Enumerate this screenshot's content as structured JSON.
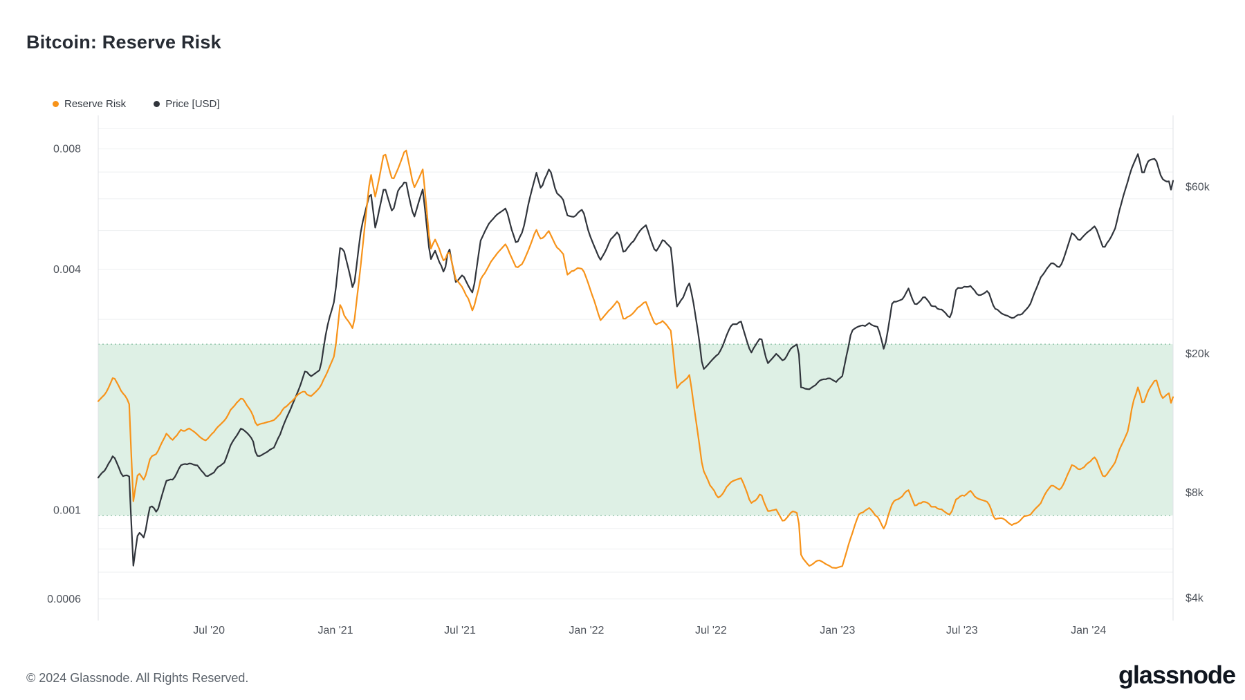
{
  "header": {
    "title": "Bitcoin: Reserve Risk"
  },
  "footer": {
    "copyright": "© 2024 Glassnode. All Rights Reserved.",
    "brand": "glassnode"
  },
  "chart_data": {
    "type": "line",
    "title": "Bitcoin: Reserve Risk",
    "legend_position": "top-left",
    "grid": true,
    "x_axis": {
      "min": "2020-01-22",
      "max": "2024-05-03",
      "ticks": [
        {
          "date": "2020-07-01",
          "label": "Jul '20"
        },
        {
          "date": "2021-01-01",
          "label": "Jan '21"
        },
        {
          "date": "2021-07-01",
          "label": "Jul '21"
        },
        {
          "date": "2022-01-01",
          "label": "Jan '22"
        },
        {
          "date": "2022-07-01",
          "label": "Jul '22"
        },
        {
          "date": "2023-01-01",
          "label": "Jan '23"
        },
        {
          "date": "2023-07-01",
          "label": "Jul '23"
        },
        {
          "date": "2024-01-01",
          "label": "Jan '24"
        }
      ]
    },
    "left_axis": {
      "title": "Reserve Risk",
      "scale": "log",
      "min": 0.00053,
      "max": 0.0097,
      "ticks": [
        {
          "value": 0.008,
          "label": "0.008"
        },
        {
          "value": 0.004,
          "label": "0.004"
        },
        {
          "value": 0.001,
          "label": "0.001"
        },
        {
          "value": 0.0006,
          "label": "0.0006"
        }
      ],
      "grid_values": [
        0.0006,
        0.0007,
        0.0008,
        0.0009,
        0.001,
        0.002,
        0.003,
        0.004,
        0.005,
        0.006,
        0.007,
        0.008,
        0.009
      ]
    },
    "right_axis": {
      "title": "Price [USD]",
      "scale": "log",
      "min": 3450,
      "max": 96000,
      "ticks": [
        {
          "value": 60000,
          "label": "$60k"
        },
        {
          "value": 20000,
          "label": "$20k"
        },
        {
          "value": 8000,
          "label": "$8k"
        },
        {
          "value": 4000,
          "label": "$4k"
        }
      ]
    },
    "band": {
      "from": 0.00097,
      "to": 0.0026,
      "fill": "#def0e5",
      "border_color": "#86bda1",
      "style": "dotted"
    },
    "dates": [
      "2020-01-22",
      "2020-02-05",
      "2020-02-13",
      "2020-02-26",
      "2020-03-07",
      "2020-03-13",
      "2020-03-20",
      "2020-03-29",
      "2020-04-07",
      "2020-04-16",
      "2020-04-30",
      "2020-05-10",
      "2020-05-20",
      "2020-06-02",
      "2020-06-15",
      "2020-06-27",
      "2020-07-08",
      "2020-07-23",
      "2020-08-02",
      "2020-08-17",
      "2020-09-03",
      "2020-09-08",
      "2020-09-21",
      "2020-10-04",
      "2020-10-21",
      "2020-11-06",
      "2020-11-18",
      "2020-11-26",
      "2020-12-10",
      "2020-12-19",
      "2020-12-31",
      "2021-01-08",
      "2021-01-14",
      "2021-01-27",
      "2021-02-08",
      "2021-02-21",
      "2021-02-28",
      "2021-03-13",
      "2021-03-25",
      "2021-04-02",
      "2021-04-13",
      "2021-04-25",
      "2021-05-08",
      "2021-05-19",
      "2021-05-26",
      "2021-06-08",
      "2021-06-15",
      "2021-06-25",
      "2021-07-05",
      "2021-07-20",
      "2021-07-31",
      "2021-08-14",
      "2021-08-23",
      "2021-09-06",
      "2021-09-21",
      "2021-09-30",
      "2021-10-10",
      "2021-10-20",
      "2021-10-27",
      "2021-11-08",
      "2021-11-18",
      "2021-11-28",
      "2021-12-04",
      "2021-12-15",
      "2021-12-27",
      "2022-01-05",
      "2022-01-21",
      "2022-02-04",
      "2022-02-16",
      "2022-02-24",
      "2022-03-09",
      "2022-03-28",
      "2022-04-11",
      "2022-04-21",
      "2022-05-04",
      "2022-05-12",
      "2022-05-31",
      "2022-06-13",
      "2022-06-19",
      "2022-07-03",
      "2022-07-13",
      "2022-07-29",
      "2022-08-14",
      "2022-08-28",
      "2022-09-12",
      "2022-09-21",
      "2022-10-04",
      "2022-10-14",
      "2022-10-26",
      "2022-11-05",
      "2022-11-09",
      "2022-11-21",
      "2022-12-05",
      "2022-12-20",
      "2022-12-30",
      "2023-01-08",
      "2023-01-21",
      "2023-02-02",
      "2023-02-16",
      "2023-03-01",
      "2023-03-10",
      "2023-03-22",
      "2023-04-05",
      "2023-04-14",
      "2023-04-24",
      "2023-05-06",
      "2023-05-18",
      "2023-06-01",
      "2023-06-15",
      "2023-06-23",
      "2023-07-13",
      "2023-07-24",
      "2023-08-08",
      "2023-08-17",
      "2023-09-01",
      "2023-09-11",
      "2023-09-27",
      "2023-10-08",
      "2023-10-23",
      "2023-11-02",
      "2023-11-09",
      "2023-11-21",
      "2023-12-08",
      "2023-12-18",
      "2024-01-02",
      "2024-01-11",
      "2024-01-23",
      "2024-02-08",
      "2024-02-15",
      "2024-02-28",
      "2024-03-05",
      "2024-03-13",
      "2024-03-20",
      "2024-03-27",
      "2024-04-08",
      "2024-04-17",
      "2024-04-27",
      "2024-05-01",
      "2024-05-03"
    ],
    "series": [
      {
        "name": "Reserve Risk",
        "axis": "left",
        "color": "#f7931a",
        "values": [
          0.0019,
          0.002,
          0.00215,
          0.00195,
          0.00185,
          0.00105,
          0.00125,
          0.00118,
          0.00135,
          0.00138,
          0.00155,
          0.00148,
          0.00158,
          0.0016,
          0.00152,
          0.0015,
          0.00158,
          0.00165,
          0.00178,
          0.0019,
          0.00172,
          0.00162,
          0.00165,
          0.00168,
          0.0018,
          0.00192,
          0.002,
          0.00195,
          0.002,
          0.00218,
          0.00245,
          0.0033,
          0.00305,
          0.00285,
          0.0043,
          0.007,
          0.006,
          0.0078,
          0.0067,
          0.0072,
          0.008,
          0.0064,
          0.0072,
          0.0045,
          0.0048,
          0.0042,
          0.0045,
          0.0038,
          0.0036,
          0.0031,
          0.0038,
          0.0042,
          0.0044,
          0.0047,
          0.004,
          0.0041,
          0.0045,
          0.005,
          0.0047,
          0.00495,
          0.0045,
          0.0044,
          0.0039,
          0.004,
          0.00395,
          0.0036,
          0.003,
          0.0032,
          0.0033,
          0.00295,
          0.0031,
          0.0033,
          0.00285,
          0.00295,
          0.0028,
          0.002,
          0.00215,
          0.0015,
          0.00125,
          0.00112,
          0.00105,
          0.00118,
          0.0012,
          0.00105,
          0.0011,
          0.00098,
          0.001,
          0.00094,
          0.00098,
          0.00098,
          0.00078,
          0.00073,
          0.00075,
          0.00072,
          0.00071,
          0.00072,
          0.00085,
          0.00098,
          0.00102,
          0.00097,
          0.0009,
          0.00105,
          0.00108,
          0.00112,
          0.00104,
          0.00106,
          0.00102,
          0.001,
          0.00096,
          0.00106,
          0.00112,
          0.00106,
          0.00105,
          0.00095,
          0.00094,
          0.00092,
          0.00095,
          0.00096,
          0.00104,
          0.00112,
          0.00115,
          0.00112,
          0.0013,
          0.00125,
          0.0013,
          0.00134,
          0.0012,
          0.0013,
          0.00142,
          0.0016,
          0.00185,
          0.00205,
          0.00185,
          0.002,
          0.00215,
          0.00192,
          0.00198,
          0.00182,
          0.0019
        ]
      },
      {
        "name": "Price [USD]",
        "axis": "right",
        "color": "#31353c",
        "values": [
          8700,
          9600,
          10300,
          8800,
          8900,
          4900,
          6200,
          5900,
          7350,
          7000,
          8600,
          8700,
          9500,
          9650,
          9450,
          9000,
          9250,
          9550,
          11000,
          12250,
          11400,
          10200,
          10450,
          10670,
          12800,
          15500,
          17800,
          17150,
          18250,
          23800,
          29000,
          40800,
          39400,
          30400,
          46400,
          57500,
          45100,
          61200,
          51300,
          59000,
          63500,
          49100,
          58800,
          36800,
          39300,
          33400,
          40100,
          31600,
          33700,
          29800,
          41500,
          47100,
          49500,
          52700,
          40700,
          43800,
          54700,
          66000,
          58500,
          67500,
          56900,
          54700,
          49200,
          48900,
          50700,
          43400,
          36400,
          41500,
          43900,
          38300,
          41900,
          47100,
          39500,
          42200,
          39800,
          27000,
          31700,
          22500,
          18300,
          19300,
          19900,
          23800,
          24400,
          19600,
          22400,
          18900,
          20300,
          19200,
          20800,
          21300,
          15900,
          15800,
          17000,
          16900,
          16600,
          17100,
          22700,
          23700,
          24600,
          23600,
          20200,
          28100,
          28200,
          30400,
          27600,
          28900,
          27000,
          26800,
          25100,
          30700,
          31400,
          29200,
          29800,
          26600,
          25800,
          25200,
          26200,
          27900,
          33100,
          35400,
          36700,
          35800,
          44200,
          41300,
          44900,
          46600,
          39900,
          45300,
          51900,
          62500,
          68000,
          73100,
          63800,
          69400,
          71600,
          63800,
          63100,
          58300,
          62900
        ]
      }
    ]
  }
}
